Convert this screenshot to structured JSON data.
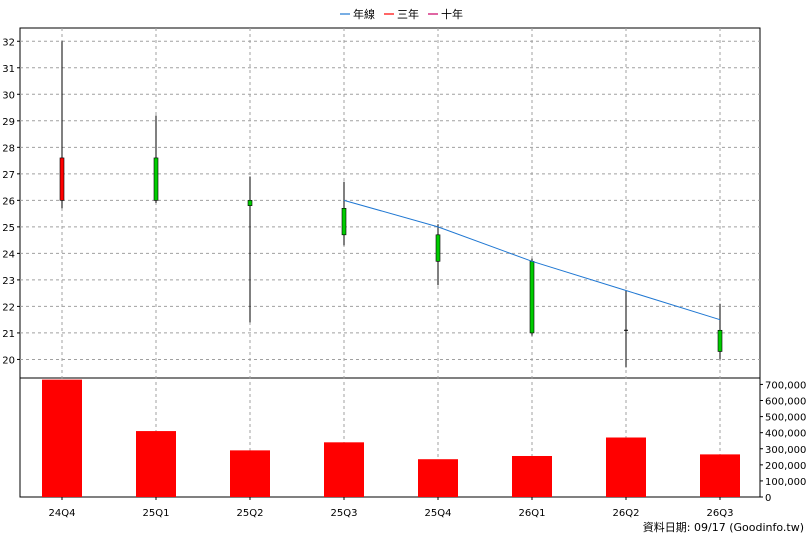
{
  "chart_data": {
    "type": "candlestick",
    "legend": {
      "placement": "top-center",
      "items": [
        {
          "name": "年線",
          "color": "#1f77d2"
        },
        {
          "name": "三年",
          "color": "#ff0000"
        },
        {
          "name": "十年",
          "color": "#cc0066"
        }
      ]
    },
    "categories": [
      "24Q4",
      "25Q1",
      "25Q2",
      "25Q3",
      "25Q4",
      "26Q1",
      "26Q2",
      "26Q3"
    ],
    "price_axis": {
      "min": 19.3,
      "max": 32.5,
      "ticks": [
        "20",
        "21",
        "22",
        "23",
        "24",
        "25",
        "26",
        "27",
        "28",
        "29",
        "30",
        "31",
        "32"
      ]
    },
    "volume_axis": {
      "min": 0,
      "max": 740000,
      "ticks": [
        "0",
        "100,000",
        "200,000",
        "300,000",
        "400,000",
        "500,000",
        "600,000",
        "700,000"
      ]
    },
    "candles": [
      {
        "period": "24Q4",
        "open": 26.0,
        "close": 27.6,
        "high": 32.0,
        "low": 25.7
      },
      {
        "period": "25Q1",
        "open": 27.6,
        "close": 26.0,
        "high": 29.2,
        "low": 25.9
      },
      {
        "period": "25Q2",
        "open": 26.0,
        "close": 25.8,
        "high": 26.9,
        "low": 21.4
      },
      {
        "period": "25Q3",
        "open": 25.7,
        "close": 24.7,
        "high": 26.7,
        "low": 24.3
      },
      {
        "period": "25Q4",
        "open": 24.7,
        "close": 23.7,
        "high": 25.1,
        "low": 22.8
      },
      {
        "period": "26Q1",
        "open": 23.7,
        "close": 21.0,
        "high": 23.8,
        "low": 20.9
      },
      {
        "period": "26Q2",
        "open": 21.1,
        "close": 21.1,
        "high": 22.6,
        "low": 19.7
      },
      {
        "period": "26Q3",
        "open": 21.1,
        "close": 20.3,
        "high": 22.1,
        "low": 20.0
      }
    ],
    "annual_line": {
      "name": "年線",
      "points": [
        {
          "period": "25Q3",
          "value": 26.0
        },
        {
          "period": "25Q4",
          "value": 25.0
        },
        {
          "period": "26Q1",
          "value": 23.7
        },
        {
          "period": "26Q2",
          "value": 22.6
        },
        {
          "period": "26Q3",
          "value": 21.5
        }
      ]
    },
    "volume": [
      730000,
      410000,
      290000,
      340000,
      235000,
      255000,
      370000,
      265000
    ],
    "colors": {
      "up": "#ff0000",
      "down": "#00cc00",
      "volume": "#ff0000",
      "annual": "#1f77d2",
      "grid": "#a0a0a0"
    },
    "grid": true
  },
  "footer": "資料日期: 09/17  (Goodinfo.tw)"
}
